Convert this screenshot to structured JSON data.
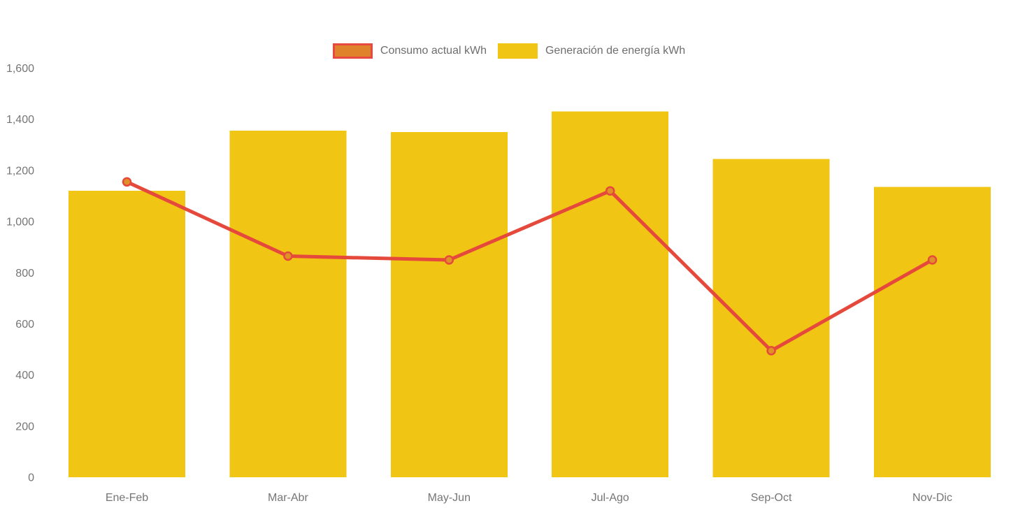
{
  "legend": {
    "items": [
      {
        "id": "consumo-actual",
        "label": "Consumo actual kWh",
        "swatch_fill": "#e0812b",
        "swatch_border": "#e7483f"
      },
      {
        "id": "generacion-energia",
        "label": "Generación de energía kWh",
        "swatch_fill": "#f0c513",
        "swatch_border": "#f0c513"
      }
    ]
  },
  "chart_data": {
    "type": "combo-bar-line",
    "title": "",
    "xlabel": "",
    "ylabel": "",
    "categories": [
      "Ene-Feb",
      "Mar-Abr",
      "May-Jun",
      "Jul-Ago",
      "Sep-Oct",
      "Nov-Dic"
    ],
    "series": [
      {
        "name": "Generación de energía kWh",
        "type": "bar",
        "values": [
          1120,
          1355,
          1350,
          1430,
          1245,
          1135
        ],
        "color": "#f0c513"
      },
      {
        "name": "Consumo actual kWh",
        "type": "line",
        "values": [
          1155,
          865,
          850,
          1120,
          495,
          850
        ],
        "color": "#e5493c",
        "marker_fill": "#e18f27",
        "marker_border": "#e5493c"
      }
    ],
    "ylim": [
      0,
      1600
    ],
    "y_ticks": [
      {
        "value": 0,
        "label": "0"
      },
      {
        "value": 200,
        "label": "200"
      },
      {
        "value": 400,
        "label": "400"
      },
      {
        "value": 600,
        "label": "600"
      },
      {
        "value": 800,
        "label": "800"
      },
      {
        "value": 1000,
        "label": "1,000"
      },
      {
        "value": 1200,
        "label": "1,200"
      },
      {
        "value": 1400,
        "label": "1,400"
      },
      {
        "value": 1600,
        "label": "1,600"
      }
    ],
    "grid": false,
    "legend_position": "top-center",
    "axis_label_color": "#757575"
  }
}
